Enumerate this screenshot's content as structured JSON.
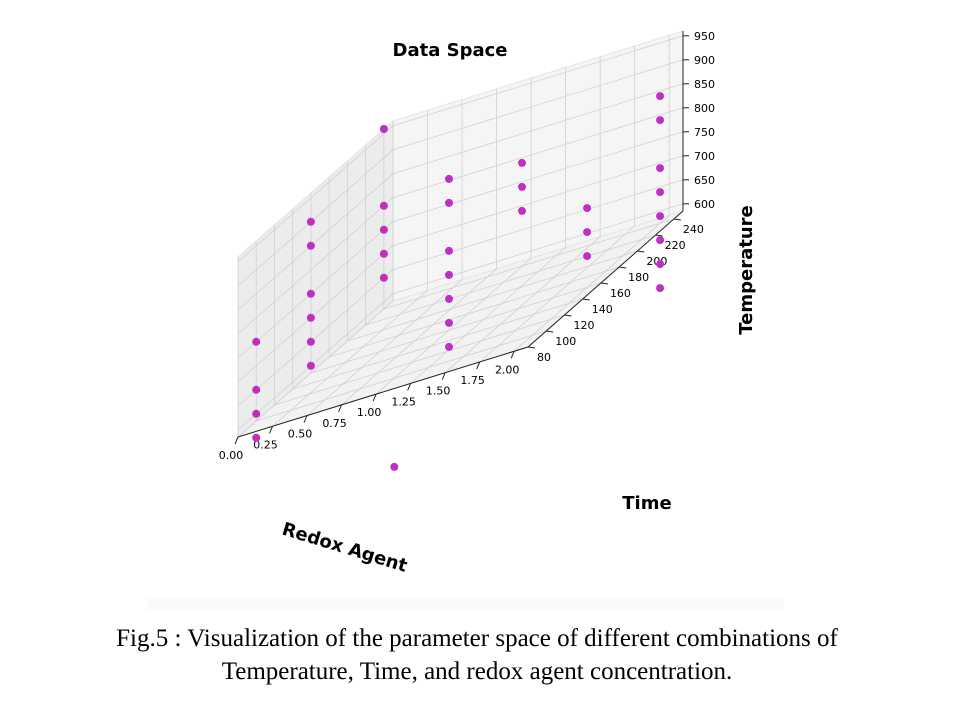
{
  "chart_data": {
    "type": "scatter",
    "title": "Data Space",
    "xlabel": "Redox Agent",
    "ylabel": "Time",
    "zlabel": "Temperature",
    "xlim": [
      0,
      2.1
    ],
    "ylim": [
      80,
      250
    ],
    "zlim": [
      585,
      960
    ],
    "x_ticks": [
      "0.00",
      "0.25",
      "0.50",
      "0.75",
      "1.00",
      "1.25",
      "1.50",
      "1.75",
      "2.00"
    ],
    "y_ticks": [
      "80",
      "100",
      "120",
      "140",
      "160",
      "180",
      "200",
      "220",
      "240"
    ],
    "z_ticks": [
      "600",
      "650",
      "700",
      "750",
      "800",
      "850",
      "900",
      "950"
    ],
    "marker_color": "#bf2fc4",
    "points": [
      {
        "x": 0.0,
        "y": 240,
        "z": 960
      },
      {
        "x": 0.0,
        "y": 240,
        "z": 800
      },
      {
        "x": 0.0,
        "y": 240,
        "z": 750
      },
      {
        "x": 0.0,
        "y": 240,
        "z": 700
      },
      {
        "x": 0.0,
        "y": 240,
        "z": 650
      },
      {
        "x": 0.0,
        "y": 160,
        "z": 900
      },
      {
        "x": 0.0,
        "y": 160,
        "z": 850
      },
      {
        "x": 0.0,
        "y": 160,
        "z": 750
      },
      {
        "x": 0.0,
        "y": 160,
        "z": 700
      },
      {
        "x": 0.0,
        "y": 160,
        "z": 650
      },
      {
        "x": 0.0,
        "y": 160,
        "z": 600
      },
      {
        "x": 0.0,
        "y": 100,
        "z": 750
      },
      {
        "x": 0.0,
        "y": 100,
        "z": 650
      },
      {
        "x": 0.0,
        "y": 100,
        "z": 600
      },
      {
        "x": 0.0,
        "y": 100,
        "z": 550
      },
      {
        "x": 1.0,
        "y": 240,
        "z": 800
      },
      {
        "x": 1.0,
        "y": 240,
        "z": 750
      },
      {
        "x": 1.0,
        "y": 240,
        "z": 700
      },
      {
        "x": 1.0,
        "y": 160,
        "z": 900
      },
      {
        "x": 1.0,
        "y": 160,
        "z": 850
      },
      {
        "x": 1.0,
        "y": 160,
        "z": 750
      },
      {
        "x": 1.0,
        "y": 160,
        "z": 700
      },
      {
        "x": 1.0,
        "y": 160,
        "z": 650
      },
      {
        "x": 1.0,
        "y": 160,
        "z": 600
      },
      {
        "x": 1.0,
        "y": 160,
        "z": 550
      },
      {
        "x": 2.0,
        "y": 240,
        "z": 850
      },
      {
        "x": 2.0,
        "y": 240,
        "z": 800
      },
      {
        "x": 2.0,
        "y": 240,
        "z": 700
      },
      {
        "x": 2.0,
        "y": 240,
        "z": 650
      },
      {
        "x": 2.0,
        "y": 240,
        "z": 600
      },
      {
        "x": 2.0,
        "y": 240,
        "z": 550
      },
      {
        "x": 2.0,
        "y": 240,
        "z": 500
      },
      {
        "x": 2.0,
        "y": 240,
        "z": 450
      },
      {
        "x": 2.0,
        "y": 160,
        "z": 750
      },
      {
        "x": 2.0,
        "y": 160,
        "z": 700
      },
      {
        "x": 2.0,
        "y": 160,
        "z": 650
      },
      {
        "x": 1.0,
        "y": 100,
        "z": 400
      }
    ],
    "grid": true
  },
  "caption": {
    "line1": "Fig.5 : Visualization of the parameter space of different combinations of",
    "line2": "Temperature, Time, and redox agent concentration."
  }
}
